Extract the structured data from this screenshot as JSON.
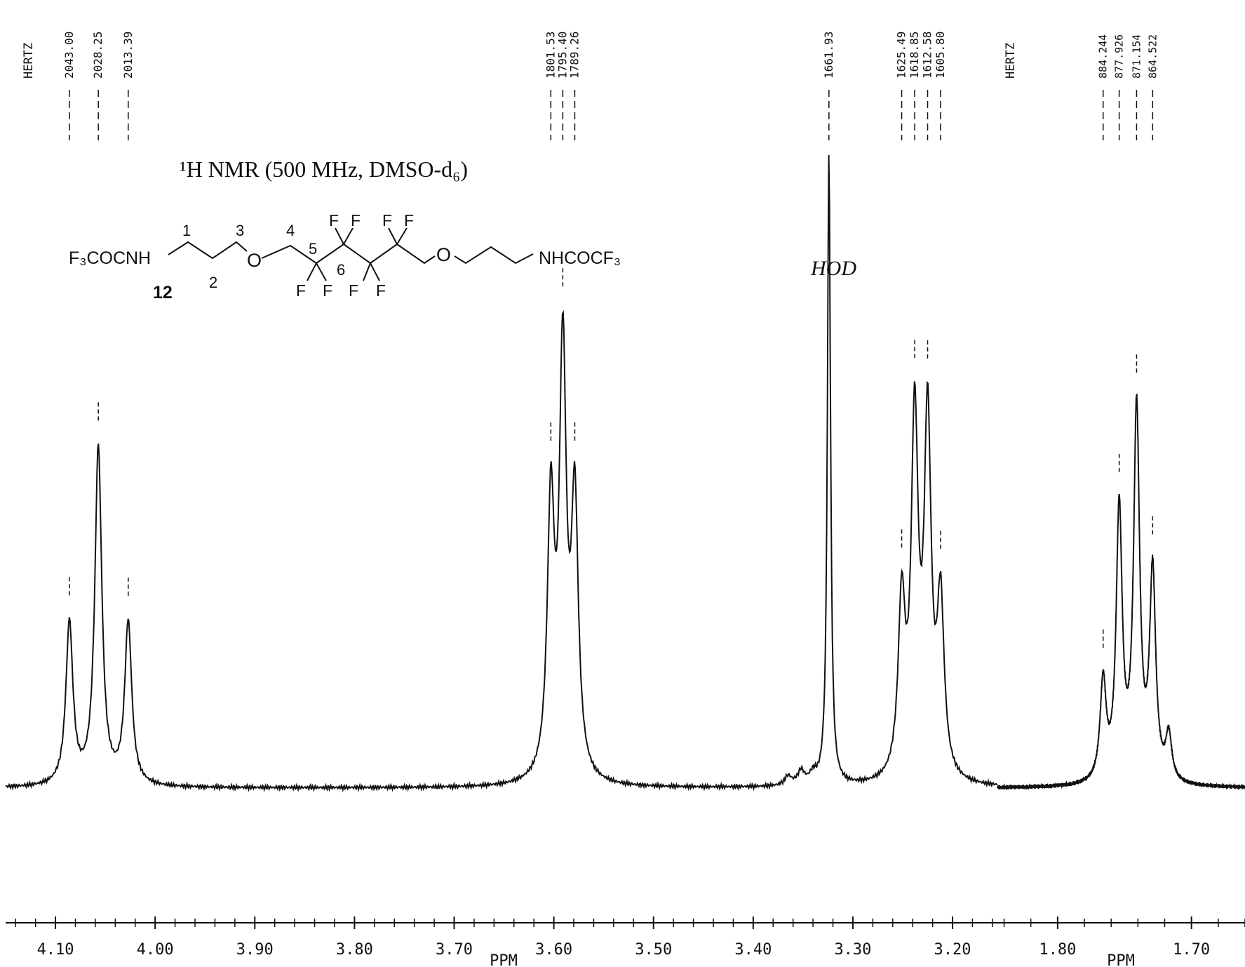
{
  "title": "¹H NMR (500 MHz, DMSO-d₆)",
  "annotation": "HOD",
  "structure": {
    "left_group": "F₃COCNH",
    "right_group": "NHCOCF₃",
    "compound_number": "12",
    "oxygen_label": "O",
    "fluorine_label": "F",
    "position_labels": [
      "1",
      "2",
      "3",
      "4",
      "5",
      "6"
    ]
  },
  "chart_data": {
    "type": "line",
    "instrument_label": "HERTZ",
    "x_unit_label": "PPM",
    "panels": [
      {
        "name": "main",
        "xlim": [
          4.15,
          3.155
        ],
        "x_ticks": [
          "4.10",
          "4.00",
          "3.90",
          "3.80",
          "3.70",
          "3.60",
          "3.50",
          "3.40",
          "3.30",
          "3.20"
        ],
        "x_tick_values": [
          4.1,
          4.0,
          3.9,
          3.8,
          3.7,
          3.6,
          3.5,
          3.4,
          3.3,
          3.2
        ],
        "peaks_ppm": [
          4.086,
          4.057,
          4.027,
          3.603,
          3.591,
          3.579,
          3.324,
          3.251,
          3.238,
          3.225,
          3.212,
          3.365,
          3.352,
          3.34
        ],
        "peaks_height": [
          0.36,
          0.75,
          0.36,
          0.6,
          0.93,
          0.6,
          1.4,
          0.38,
          0.78,
          0.78,
          0.38,
          0.02,
          0.03,
          0.02
        ],
        "peak_labels_hz": [
          "2043.00",
          "2028.25",
          "2013.39",
          "1801.53",
          "1795.40",
          "1789.26",
          "1661.93",
          "1625.49",
          "1618.85",
          "1612.58",
          "1605.80"
        ]
      },
      {
        "name": "inset",
        "xlim": [
          1.845,
          1.66
        ],
        "x_ticks": [
          "1.80",
          "1.70"
        ],
        "x_tick_values": [
          1.8,
          1.7
        ],
        "peaks_ppm": [
          1.766,
          1.754,
          1.741,
          1.729,
          1.717
        ],
        "peaks_height": [
          0.22,
          0.6,
          0.82,
          0.46,
          0.1
        ],
        "peak_labels_hz": [
          "884.244",
          "877.926",
          "871.154",
          "864.522"
        ]
      }
    ]
  }
}
